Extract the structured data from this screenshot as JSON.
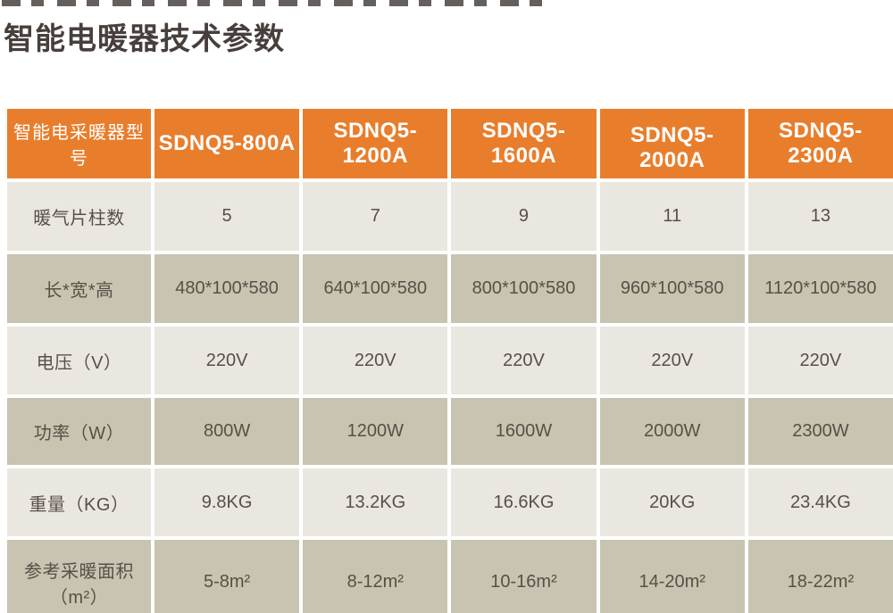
{
  "page": {
    "title": "智能电暖器技术参数"
  },
  "table": {
    "header": {
      "label": "智能电采暖器型号",
      "models": [
        "SDNQ5-800A",
        "SDNQ5-1200A",
        "SDNQ5-1600A",
        "SDNQ5-2000A",
        "SDNQ5-2300A"
      ]
    },
    "rows": [
      {
        "label": "暖气片柱数",
        "values": [
          "5",
          "7",
          "9",
          "11",
          "13"
        ]
      },
      {
        "label": "长*宽*高",
        "values": [
          "480*100*580",
          "640*100*580",
          "800*100*580",
          "960*100*580",
          "1120*100*580"
        ]
      },
      {
        "label": "电压（V）",
        "values": [
          "220V",
          "220V",
          "220V",
          "220V",
          "220V"
        ]
      },
      {
        "label": "功率（W）",
        "values": [
          "800W",
          "1200W",
          "1600W",
          "2000W",
          "2300W"
        ]
      },
      {
        "label": "重量（KG）",
        "values": [
          "9.8KG",
          "13.2KG",
          "16.6KG",
          "20KG",
          "23.4KG"
        ]
      },
      {
        "label": "参考采暖面积（m²）",
        "values": [
          "5-8m²",
          "8-12m²",
          "10-16m²",
          "14-20m²",
          "18-22m²"
        ]
      }
    ],
    "colors": {
      "header_bg": "#E87E2C",
      "row_light": "#EAE7E0",
      "row_dark": "#C8C4B1",
      "gap": "#FFFFFF",
      "header_text": "#FFFFFF",
      "body_text": "#584F48",
      "title_text": "#473F3C"
    }
  }
}
